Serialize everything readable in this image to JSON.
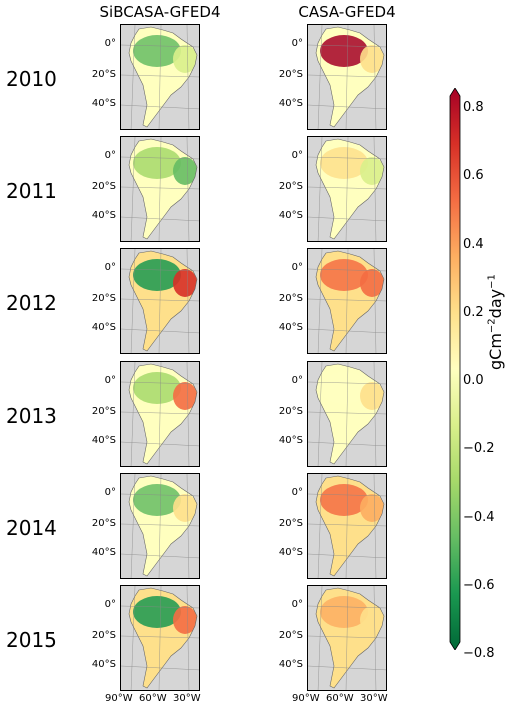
{
  "columns": [
    "SiBCASA-GFED4",
    "CASA-GFED4"
  ],
  "years": [
    "2010",
    "2011",
    "2012",
    "2013",
    "2014",
    "2015"
  ],
  "lat_ticks": [
    "0°",
    "20°S",
    "40°S"
  ],
  "lon_ticks": [
    "90°W",
    "60°W",
    "30°W"
  ],
  "colorbar": {
    "label": "gCm",
    "label_sup1": "−2",
    "label_mid": "day",
    "label_sup2": "−1",
    "ticks": [
      "0.8",
      "0.6",
      "0.4",
      "0.2",
      "0.0",
      "−0.2",
      "−0.4",
      "−0.6",
      "−0.8"
    ],
    "min": -0.8,
    "max": 0.8,
    "colors": [
      "#006837",
      "#1a9850",
      "#66bd63",
      "#a6d96a",
      "#d9ef8b",
      "#ffffbf",
      "#fee08b",
      "#fdae61",
      "#f46d43",
      "#d73027",
      "#a50026"
    ]
  },
  "chart_data": {
    "type": "heatmap",
    "title": "",
    "layout": "6 rows (years) × 2 columns (models) of South America maps",
    "xlabel": "",
    "ylabel": "",
    "colorbar_range": [
      -0.8,
      0.8
    ],
    "map_extent": {
      "lon": [
        -90,
        -30
      ],
      "lat": [
        -60,
        15
      ]
    },
    "panels_dominant_values": {
      "SiBCASA-GFED4": {
        "2010": {
          "amazon": -0.5,
          "east_brazil": -0.2,
          "south": 0.0
        },
        "2011": {
          "amazon": -0.4,
          "east_brazil": -0.5,
          "south": 0.0
        },
        "2012": {
          "amazon": -0.6,
          "east_brazil": 0.6,
          "south": 0.1
        },
        "2013": {
          "amazon": -0.4,
          "east_brazil": 0.4,
          "south": 0.0
        },
        "2014": {
          "amazon": -0.5,
          "east_brazil": 0.2,
          "south": 0.0
        },
        "2015": {
          "amazon": -0.6,
          "east_brazil": 0.5,
          "south": 0.1
        }
      },
      "CASA-GFED4": {
        "2010": {
          "amazon": 0.8,
          "east_brazil": 0.2,
          "south": 0.0
        },
        "2011": {
          "amazon": 0.1,
          "east_brazil": -0.2,
          "south": 0.0
        },
        "2012": {
          "amazon": 0.5,
          "east_brazil": 0.5,
          "south": 0.1
        },
        "2013": {
          "amazon": 0.0,
          "east_brazil": 0.2,
          "south": 0.0
        },
        "2014": {
          "amazon": 0.5,
          "east_brazil": 0.3,
          "south": 0.1
        },
        "2015": {
          "amazon": 0.3,
          "east_brazil": 0.2,
          "south": 0.1
        }
      }
    }
  }
}
